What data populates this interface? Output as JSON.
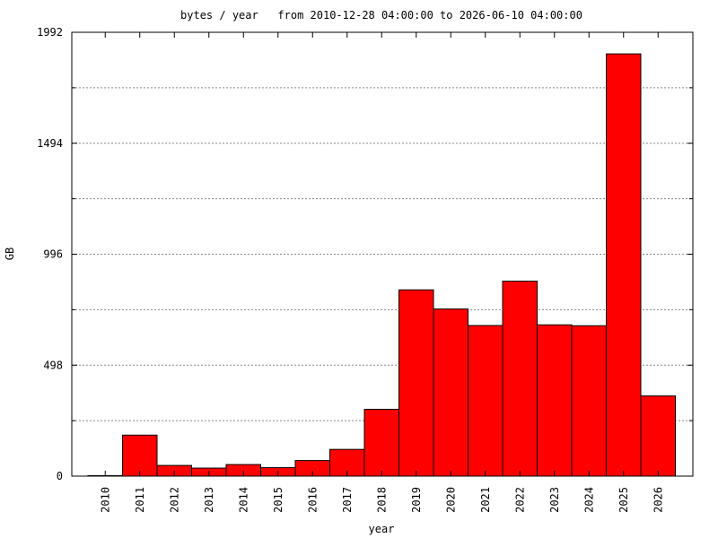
{
  "chart_data": {
    "type": "bar",
    "title": "bytes / year   from 2010-12-28 04:00:00 to 2026-06-10 04:00:00",
    "xlabel": "year",
    "ylabel": "GB",
    "categories": [
      "2010",
      "2011",
      "2012",
      "2013",
      "2014",
      "2015",
      "2016",
      "2017",
      "2018",
      "2019",
      "2020",
      "2021",
      "2022",
      "2023",
      "2024",
      "2025",
      "2026"
    ],
    "values": [
      2,
      184,
      48,
      36,
      52,
      38,
      70,
      120,
      300,
      836,
      750,
      676,
      875,
      679,
      675,
      1895,
      360
    ],
    "ylim": [
      0,
      1992
    ],
    "yticks": [
      0,
      498,
      996,
      1494,
      1992
    ],
    "ytick_labels": [
      "0",
      "498",
      "996",
      "1494",
      "1992"
    ],
    "grid": true,
    "bar_color": "#ff0000"
  }
}
